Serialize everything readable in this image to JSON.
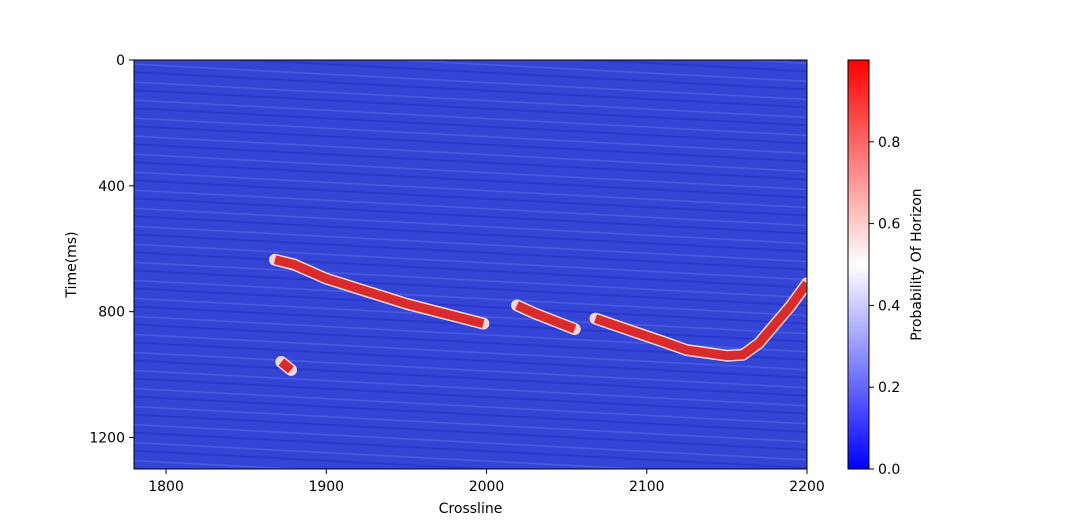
{
  "chart_data": {
    "type": "heatmap",
    "title": "",
    "xlabel": "Crossline",
    "ylabel": "Time(ms)",
    "xlim": [
      1780,
      2200
    ],
    "ylim": [
      0,
      1300
    ],
    "y_inverted": true,
    "xticks": [
      1800,
      1900,
      2000,
      2100,
      2200
    ],
    "yticks": [
      0,
      400,
      800,
      1200
    ],
    "grid": false,
    "colormap": {
      "low": "#0000ff",
      "mid": "#ffffff",
      "high": "#ff0000"
    },
    "colorbar": {
      "label": "Probability Of Horizon",
      "range": [
        0,
        1
      ],
      "ticks": [
        0.0,
        0.2,
        0.4,
        0.6,
        0.8
      ],
      "tick_labels": [
        "0.0",
        "0.2",
        "0.4",
        "0.6",
        "0.8"
      ]
    },
    "background": {
      "value": 0.05,
      "color": "#3344d6"
    },
    "horizon_segments": [
      {
        "name": "",
        "value": 0.95,
        "points": [
          [
            1868,
            635
          ],
          [
            1880,
            650
          ],
          [
            1900,
            695
          ],
          [
            1950,
            775
          ],
          [
            1998,
            838
          ]
        ]
      },
      {
        "name": "",
        "value": 0.95,
        "points": [
          [
            2019,
            780
          ],
          [
            2030,
            805
          ],
          [
            2055,
            855
          ]
        ]
      },
      {
        "name": "",
        "value": 0.95,
        "points": [
          [
            2068,
            822
          ],
          [
            2080,
            843
          ],
          [
            2110,
            895
          ],
          [
            2125,
            922
          ],
          [
            2150,
            940
          ],
          [
            2160,
            937
          ],
          [
            2170,
            900
          ],
          [
            2190,
            780
          ],
          [
            2200,
            710
          ]
        ]
      },
      {
        "name": "",
        "value": 0.9,
        "points": [
          [
            1872,
            960
          ],
          [
            1878,
            985
          ]
        ]
      }
    ]
  }
}
